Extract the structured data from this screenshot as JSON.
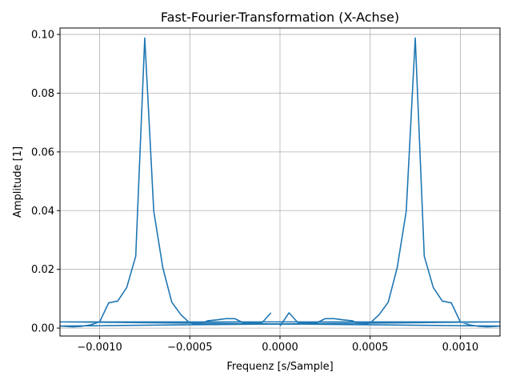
{
  "chart_data": {
    "type": "line",
    "title": "Fast-Fourier-Transformation (X-Achse)",
    "xlabel": "Frequenz [s/Sample]",
    "ylabel": "Amplitude [1]",
    "xlim": [
      -0.00122,
      0.00122
    ],
    "ylim": [
      -0.0027,
      0.1022
    ],
    "grid": true,
    "xticks": [
      -0.001,
      -0.0005,
      0.0,
      0.0005,
      0.001
    ],
    "xtick_labels": [
      "−0.0010",
      "−0.0005",
      "0.0000",
      "0.0005",
      "0.0010"
    ],
    "yticks": [
      0.0,
      0.02,
      0.04,
      0.06,
      0.08,
      0.1
    ],
    "ytick_labels": [
      "0.00",
      "0.02",
      "0.04",
      "0.06",
      "0.08",
      "0.10"
    ],
    "series": [
      {
        "color": "#1f77b4",
        "points": [
          [
            0.0,
            0.0007
          ],
          [
            5e-05,
            0.0052
          ],
          [
            0.0001,
            0.0018
          ],
          [
            0.0002,
            0.0017
          ],
          [
            0.00025,
            0.0032
          ],
          [
            0.0003,
            0.0032
          ],
          [
            0.00035,
            0.0028
          ],
          [
            0.0004,
            0.0025
          ],
          [
            0.00045,
            0.0012
          ],
          [
            0.0005,
            0.0017
          ],
          [
            0.00055,
            0.0046
          ],
          [
            0.0006,
            0.0088
          ],
          [
            0.00065,
            0.0206
          ],
          [
            0.0007,
            0.0398
          ],
          [
            0.00075,
            0.0988
          ],
          [
            0.0008,
            0.0245
          ],
          [
            0.00085,
            0.0138
          ],
          [
            0.0009,
            0.0092
          ],
          [
            0.00095,
            0.0086
          ],
          [
            0.001,
            0.0021
          ],
          [
            0.00105,
            0.0011
          ],
          [
            0.0011,
            0.0006
          ],
          [
            0.00115,
            0.0004
          ],
          [
            0.0012,
            0.0006
          ],
          [
            0.00122,
            0.0007
          ],
          [
            -0.00122,
            0.0021
          ],
          [
            0.00122,
            0.0021
          ],
          [
            -0.00122,
            0.0007
          ],
          [
            -0.0012,
            0.0006
          ],
          [
            -0.00115,
            0.0004
          ],
          [
            -0.0011,
            0.0006
          ],
          [
            -0.00105,
            0.0011
          ],
          [
            -0.001,
            0.0021
          ],
          [
            -0.00095,
            0.0086
          ],
          [
            -0.0009,
            0.0092
          ],
          [
            -0.00085,
            0.0138
          ],
          [
            -0.0008,
            0.0245
          ],
          [
            -0.00075,
            0.0988
          ],
          [
            -0.0007,
            0.0398
          ],
          [
            -0.00065,
            0.0206
          ],
          [
            -0.0006,
            0.0088
          ],
          [
            -0.00055,
            0.0046
          ],
          [
            -0.0005,
            0.0017
          ],
          [
            -0.00045,
            0.0012
          ],
          [
            -0.0004,
            0.0025
          ],
          [
            -0.00035,
            0.0028
          ],
          [
            -0.0003,
            0.0032
          ],
          [
            -0.00025,
            0.0032
          ],
          [
            -0.0002,
            0.0017
          ],
          [
            -0.0001,
            0.0018
          ],
          [
            -5e-05,
            0.0052
          ]
        ]
      }
    ]
  }
}
